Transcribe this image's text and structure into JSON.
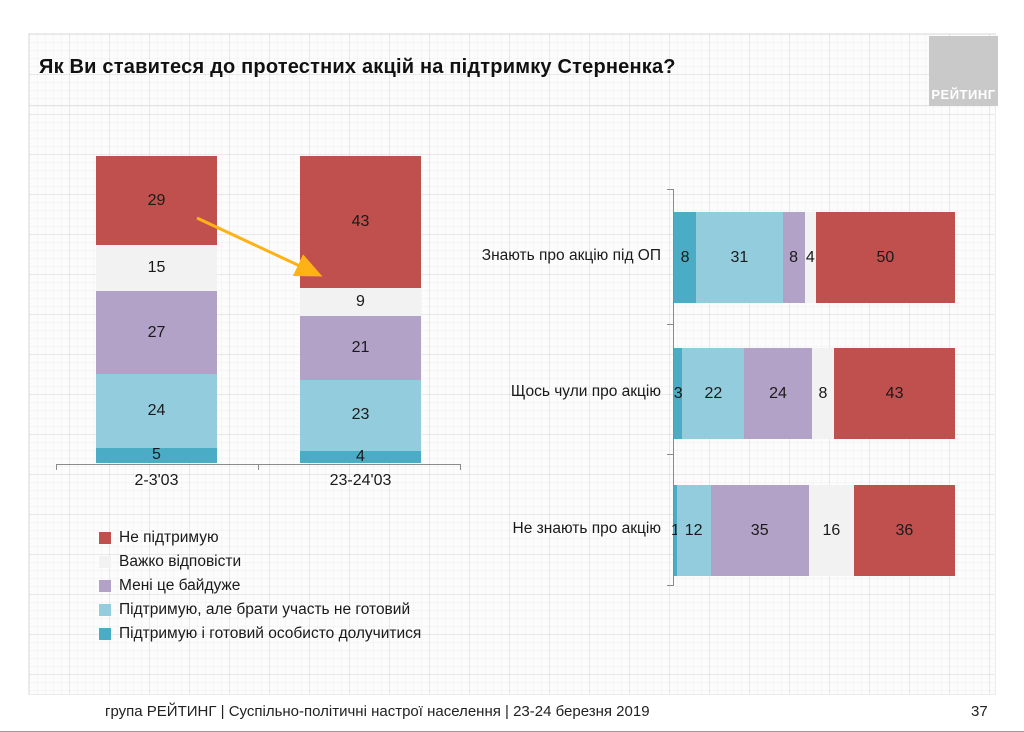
{
  "slide": {
    "title": "Як Ви ставитеся до протестних акцій на підтримку Стерненка?",
    "logo_text": "РЕЙТИНГ",
    "footer": "група РЕЙТИНГ | Суспільно-політичні настрої населення  | 23-24 березня 2019",
    "page_number": "37"
  },
  "colors": {
    "red": "#C0504D",
    "gray": "#F2F2F2",
    "purple": "#B2A2C7",
    "lightblue": "#93CDDD",
    "teal": "#4BACC6",
    "arrow": "#FFB215",
    "axis": "#8A8A8A"
  },
  "legend": [
    {
      "label": "Не підтримую",
      "color": "red"
    },
    {
      "label": "Важко відповісти",
      "color": "gray"
    },
    {
      "label": "Мені це байдуже",
      "color": "purple"
    },
    {
      "label": "Підтримую, але брати участь не готовий",
      "color": "lightblue"
    },
    {
      "label": "Підтримую і готовий особисто долучитися",
      "color": "teal"
    }
  ],
  "chart_data": [
    {
      "type": "bar",
      "subtype": "stacked-vertical-100",
      "title": "",
      "categories": [
        "2-3'03",
        "23-24'03"
      ],
      "series": [
        {
          "name": "Не підтримую",
          "color": "red",
          "values": [
            29,
            43
          ]
        },
        {
          "name": "Важко відповісти",
          "color": "gray",
          "values": [
            15,
            9
          ]
        },
        {
          "name": "Мені це байдуже",
          "color": "purple",
          "values": [
            27,
            21
          ]
        },
        {
          "name": "Підтримую, але брати участь не готовий",
          "color": "lightblue",
          "values": [
            24,
            23
          ]
        },
        {
          "name": "Підтримую і готовий особисто долучитися",
          "color": "teal",
          "values": [
            5,
            4
          ]
        }
      ],
      "stack_order": "top-to-bottom",
      "annotation": "orange arrow from segment 29 (2-3'03) to segment 43 (23-24'03)",
      "legend_position": "below"
    },
    {
      "type": "bar",
      "subtype": "stacked-horizontal-100",
      "title": "",
      "categories": [
        "Знають про акцію під ОП",
        "Щось чули про акцію",
        "Не знають про акцію"
      ],
      "series": [
        {
          "name": "Підтримую і готовий особисто долучитися",
          "color": "teal",
          "values": [
            8,
            3,
            1
          ]
        },
        {
          "name": "Підтримую, але брати участь не готовий",
          "color": "lightblue",
          "values": [
            31,
            22,
            12
          ]
        },
        {
          "name": "Мені це байдуже",
          "color": "purple",
          "values": [
            8,
            24,
            35
          ]
        },
        {
          "name": "Важко відповісти",
          "color": "gray",
          "values": [
            4,
            8,
            16
          ]
        },
        {
          "name": "Не підтримую",
          "color": "red",
          "values": [
            50,
            43,
            36
          ]
        }
      ],
      "stack_order": "left-to-right"
    }
  ]
}
